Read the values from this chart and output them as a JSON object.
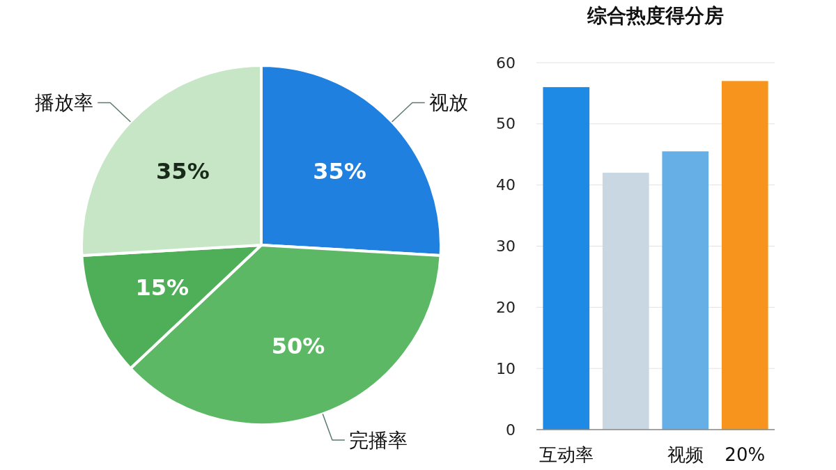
{
  "chart_data": [
    {
      "type": "pie",
      "categories": [
        "视放",
        "完播率",
        null,
        "播放率"
      ],
      "values": [
        35,
        50,
        15,
        35
      ],
      "value_labels": [
        "35%",
        "50%",
        "15%",
        "35%"
      ],
      "colors": [
        "#1f80e0",
        "#5cb865",
        "#4fae58",
        "#c6e6c6"
      ]
    },
    {
      "type": "bar",
      "title": "综合热度得分房",
      "categories": [
        "互动率",
        null,
        "视频",
        "20%"
      ],
      "values": [
        56,
        42,
        45.5,
        57
      ],
      "colors": [
        "#1e8ae6",
        "#c9d7e3",
        "#66afe6",
        "#f7941d"
      ],
      "ylim": [
        0,
        60
      ],
      "yticks": [
        0,
        10,
        20,
        30,
        40,
        50,
        60
      ],
      "grid": "y"
    }
  ]
}
